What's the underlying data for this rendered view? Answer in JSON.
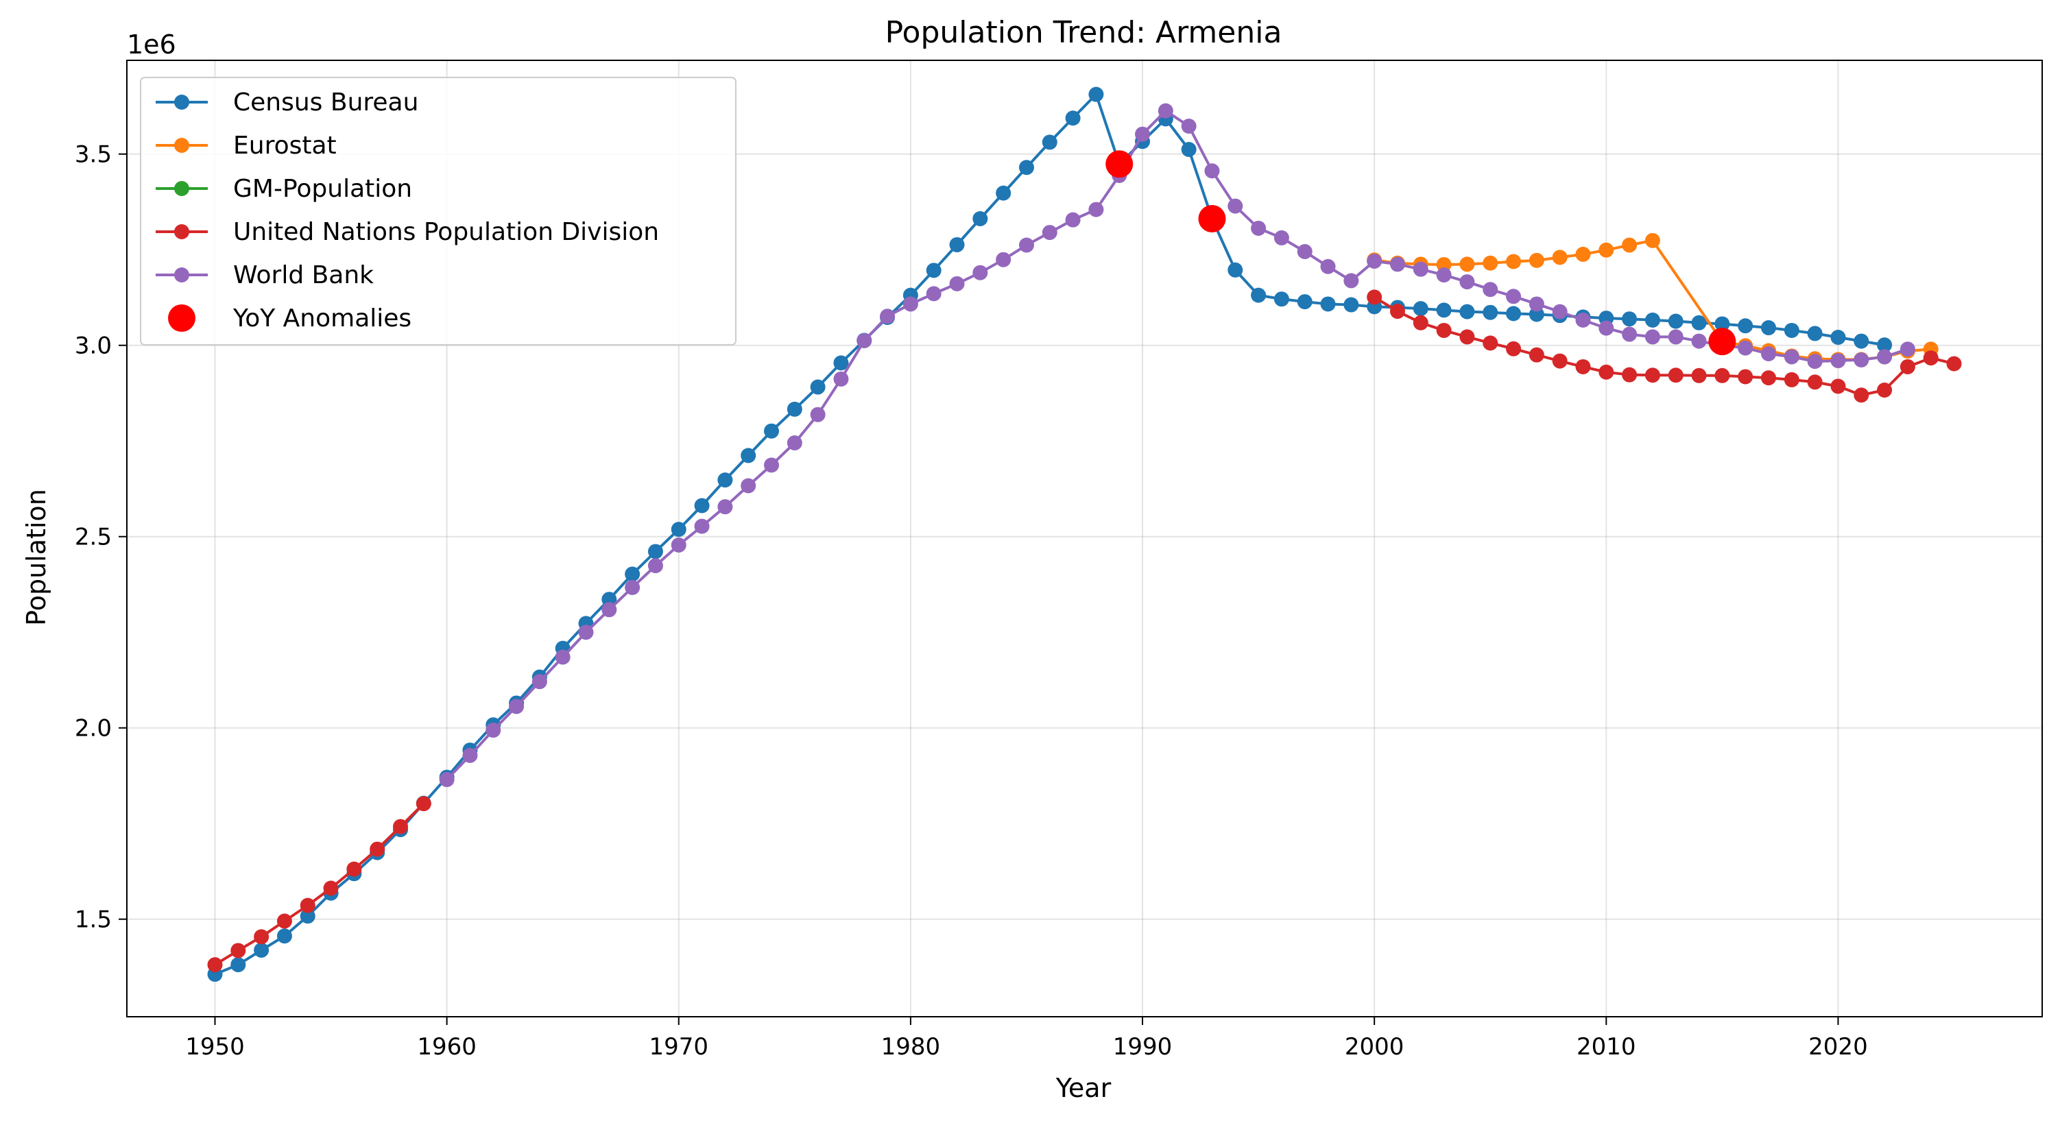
{
  "chart_data": {
    "type": "line",
    "title": "Population Trend: Armenia",
    "xlabel": "Year",
    "ylabel": "Population",
    "y_offset_label": "1e6",
    "xlim": [
      1946.2,
      2028.8
    ],
    "ylim": [
      1.245,
      3.745
    ],
    "y_scale_note": "values in millions (x 1e6)",
    "x_ticks": [
      1950,
      1960,
      1970,
      1980,
      1990,
      2000,
      2010,
      2020
    ],
    "y_ticks": [
      1.5,
      2.0,
      2.5,
      3.0,
      3.5
    ],
    "y_tick_labels": [
      "1.5",
      "2.0",
      "2.5",
      "3.0",
      "3.5"
    ],
    "grid": true,
    "legend_position": "top-left",
    "series": [
      {
        "name": "Census Bureau",
        "color": "#1f77b4",
        "points": [
          [
            1950,
            1.356
          ],
          [
            1951,
            1.381
          ],
          [
            1952,
            1.419
          ],
          [
            1953,
            1.456
          ],
          [
            1954,
            1.508
          ],
          [
            1955,
            1.568
          ],
          [
            1956,
            1.619
          ],
          [
            1957,
            1.674
          ],
          [
            1958,
            1.734
          ],
          [
            1959,
            1.803
          ],
          [
            1960,
            1.871
          ],
          [
            1961,
            1.942
          ],
          [
            1962,
            2.008
          ],
          [
            1963,
            2.065
          ],
          [
            1964,
            2.133
          ],
          [
            1965,
            2.208
          ],
          [
            1966,
            2.273
          ],
          [
            1967,
            2.336
          ],
          [
            1968,
            2.402
          ],
          [
            1969,
            2.461
          ],
          [
            1970,
            2.519
          ],
          [
            1971,
            2.581
          ],
          [
            1972,
            2.648
          ],
          [
            1973,
            2.712
          ],
          [
            1974,
            2.776
          ],
          [
            1975,
            2.833
          ],
          [
            1976,
            2.891
          ],
          [
            1977,
            2.954
          ],
          [
            1978,
            3.013
          ],
          [
            1979,
            3.073
          ],
          [
            1980,
            3.131
          ],
          [
            1981,
            3.196
          ],
          [
            1982,
            3.263
          ],
          [
            1983,
            3.331
          ],
          [
            1984,
            3.398
          ],
          [
            1985,
            3.465
          ],
          [
            1986,
            3.531
          ],
          [
            1987,
            3.594
          ],
          [
            1988,
            3.656
          ],
          [
            1989,
            3.474
          ],
          [
            1990,
            3.533
          ],
          [
            1991,
            3.592
          ],
          [
            1992,
            3.512
          ],
          [
            1993,
            3.331
          ],
          [
            1994,
            3.197
          ],
          [
            1995,
            3.131
          ],
          [
            1996,
            3.121
          ],
          [
            1997,
            3.114
          ],
          [
            1998,
            3.108
          ],
          [
            1999,
            3.106
          ],
          [
            2000,
            3.101
          ],
          [
            2001,
            3.099
          ],
          [
            2002,
            3.096
          ],
          [
            2003,
            3.092
          ],
          [
            2004,
            3.088
          ],
          [
            2005,
            3.086
          ],
          [
            2006,
            3.083
          ],
          [
            2007,
            3.081
          ],
          [
            2008,
            3.078
          ],
          [
            2009,
            3.074
          ],
          [
            2010,
            3.071
          ],
          [
            2011,
            3.069
          ],
          [
            2012,
            3.066
          ],
          [
            2013,
            3.063
          ],
          [
            2014,
            3.059
          ],
          [
            2015,
            3.056
          ],
          [
            2016,
            3.051
          ],
          [
            2017,
            3.046
          ],
          [
            2018,
            3.039
          ],
          [
            2019,
            3.031
          ],
          [
            2020,
            3.021
          ],
          [
            2021,
            3.011
          ],
          [
            2022,
            3.001
          ]
        ]
      },
      {
        "name": "Eurostat",
        "color": "#ff7f0e",
        "points": [
          [
            2000,
            3.223
          ],
          [
            2001,
            3.215
          ],
          [
            2002,
            3.212
          ],
          [
            2003,
            3.211
          ],
          [
            2004,
            3.212
          ],
          [
            2005,
            3.215
          ],
          [
            2006,
            3.219
          ],
          [
            2007,
            3.222
          ],
          [
            2008,
            3.23
          ],
          [
            2009,
            3.238
          ],
          [
            2010,
            3.249
          ],
          [
            2011,
            3.262
          ],
          [
            2012,
            3.274
          ],
          [
            2015,
            3.01
          ],
          [
            2016,
            2.999
          ],
          [
            2017,
            2.986
          ],
          [
            2018,
            2.972
          ],
          [
            2019,
            2.965
          ],
          [
            2020,
            2.963
          ],
          [
            2021,
            2.963
          ],
          [
            2022,
            2.97
          ],
          [
            2023,
            2.985
          ],
          [
            2024,
            2.99
          ]
        ]
      },
      {
        "name": "GM-Population",
        "color": "#2ca02c",
        "points": []
      },
      {
        "name": "United Nations Population Division",
        "color": "#d62728",
        "points": [
          [
            1950,
            1.381
          ],
          [
            1951,
            1.418
          ],
          [
            1952,
            1.454
          ],
          [
            1953,
            1.495
          ],
          [
            1954,
            1.536
          ],
          [
            1955,
            1.581
          ],
          [
            1956,
            1.631
          ],
          [
            1957,
            1.683
          ],
          [
            1958,
            1.742
          ],
          [
            1959,
            1.802
          ],
          [
            2000,
            3.126
          ],
          [
            2001,
            3.089
          ],
          [
            2002,
            3.059
          ],
          [
            2003,
            3.039
          ],
          [
            2004,
            3.022
          ],
          [
            2005,
            3.006
          ],
          [
            2006,
            2.991
          ],
          [
            2007,
            2.975
          ],
          [
            2008,
            2.959
          ],
          [
            2009,
            2.944
          ],
          [
            2010,
            2.93
          ],
          [
            2011,
            2.923
          ],
          [
            2012,
            2.922
          ],
          [
            2013,
            2.922
          ],
          [
            2014,
            2.921
          ],
          [
            2015,
            2.921
          ],
          [
            2016,
            2.918
          ],
          [
            2017,
            2.915
          ],
          [
            2018,
            2.91
          ],
          [
            2019,
            2.904
          ],
          [
            2020,
            2.893
          ],
          [
            2021,
            2.87
          ],
          [
            2022,
            2.883
          ],
          [
            2023,
            2.944
          ],
          [
            2024,
            2.967
          ],
          [
            2025,
            2.952
          ]
        ]
      },
      {
        "name": "World Bank",
        "color": "#9467bd",
        "points": [
          [
            1960,
            1.865
          ],
          [
            1961,
            1.928
          ],
          [
            1962,
            1.994
          ],
          [
            1963,
            2.056
          ],
          [
            1964,
            2.121
          ],
          [
            1965,
            2.185
          ],
          [
            1966,
            2.25
          ],
          [
            1967,
            2.309
          ],
          [
            1968,
            2.367
          ],
          [
            1969,
            2.424
          ],
          [
            1970,
            2.478
          ],
          [
            1971,
            2.527
          ],
          [
            1972,
            2.578
          ],
          [
            1973,
            2.633
          ],
          [
            1974,
            2.687
          ],
          [
            1975,
            2.745
          ],
          [
            1976,
            2.819
          ],
          [
            1977,
            2.912
          ],
          [
            1978,
            3.012
          ],
          [
            1979,
            3.076
          ],
          [
            1980,
            3.108
          ],
          [
            1981,
            3.135
          ],
          [
            1982,
            3.161
          ],
          [
            1983,
            3.19
          ],
          [
            1984,
            3.224
          ],
          [
            1985,
            3.262
          ],
          [
            1986,
            3.295
          ],
          [
            1987,
            3.328
          ],
          [
            1988,
            3.355
          ],
          [
            1989,
            3.444
          ],
          [
            1990,
            3.552
          ],
          [
            1991,
            3.613
          ],
          [
            1992,
            3.573
          ],
          [
            1993,
            3.456
          ],
          [
            1994,
            3.364
          ],
          [
            1995,
            3.306
          ],
          [
            1996,
            3.281
          ],
          [
            1997,
            3.245
          ],
          [
            1998,
            3.206
          ],
          [
            1999,
            3.169
          ],
          [
            2000,
            3.22
          ],
          [
            2001,
            3.212
          ],
          [
            2002,
            3.199
          ],
          [
            2003,
            3.184
          ],
          [
            2004,
            3.166
          ],
          [
            2005,
            3.146
          ],
          [
            2006,
            3.128
          ],
          [
            2007,
            3.108
          ],
          [
            2008,
            3.088
          ],
          [
            2009,
            3.066
          ],
          [
            2010,
            3.045
          ],
          [
            2011,
            3.029
          ],
          [
            2012,
            3.022
          ],
          [
            2013,
            3.022
          ],
          [
            2014,
            3.011
          ],
          [
            2015,
            3.0
          ],
          [
            2016,
            2.993
          ],
          [
            2017,
            2.978
          ],
          [
            2018,
            2.97
          ],
          [
            2019,
            2.958
          ],
          [
            2020,
            2.96
          ],
          [
            2021,
            2.962
          ],
          [
            2022,
            2.97
          ],
          [
            2023,
            2.99
          ]
        ]
      }
    ],
    "anomalies": {
      "name": "YoY Anomalies",
      "color": "#ff0000",
      "points": [
        [
          1989,
          3.474
        ],
        [
          1993,
          3.331
        ],
        [
          2015,
          3.01
        ]
      ]
    }
  }
}
